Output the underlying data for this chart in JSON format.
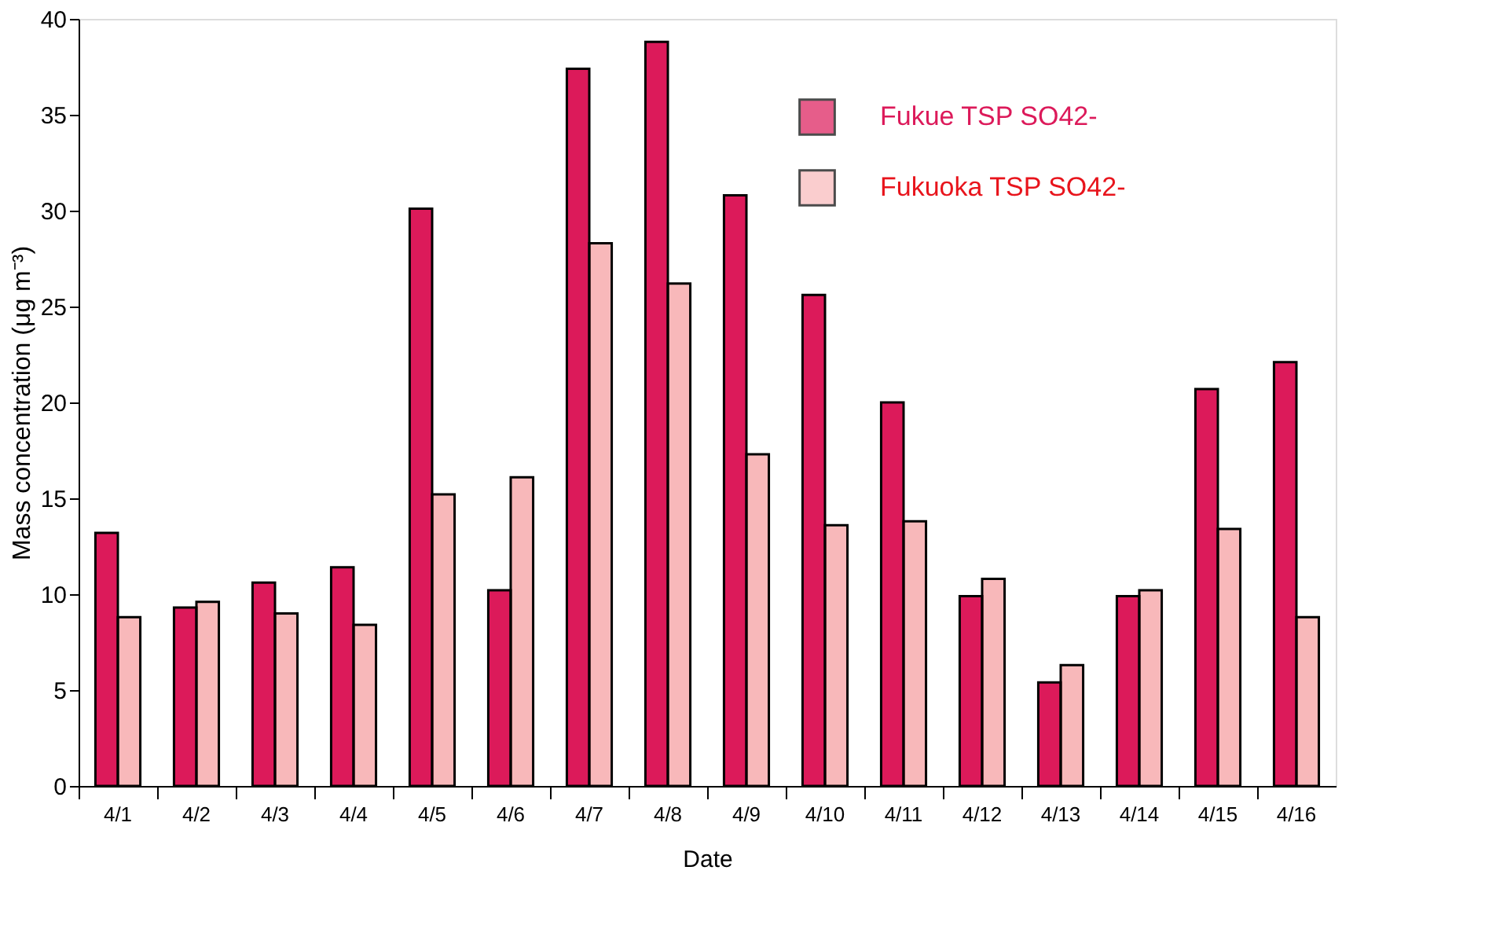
{
  "chart_data": {
    "type": "bar",
    "xlabel": "Date",
    "ylabel": "Mass concentration (μg m⁻³)",
    "categories": [
      "4/1",
      "4/2",
      "4/3",
      "4/4",
      "4/5",
      "4/6",
      "4/7",
      "4/8",
      "4/9",
      "4/10",
      "4/11",
      "4/12",
      "4/13",
      "4/14",
      "4/15",
      "4/16"
    ],
    "series": [
      {
        "name": "Fukue TSP SO42-",
        "color": "#dc1a5a",
        "values": [
          13.2,
          9.3,
          10.6,
          11.4,
          30.1,
          10.2,
          37.4,
          38.8,
          30.8,
          25.6,
          20.0,
          9.9,
          5.4,
          9.9,
          20.7,
          22.1
        ]
      },
      {
        "name": "Fukuoka TSP SO42-",
        "color": "#e8141c",
        "values": [
          8.8,
          9.6,
          9.0,
          8.4,
          15.2,
          16.1,
          28.3,
          26.2,
          17.3,
          13.6,
          13.8,
          10.8,
          6.3,
          10.2,
          13.4,
          8.8
        ]
      }
    ],
    "ylim": [
      0,
      40
    ],
    "yticks": [
      0,
      5,
      10,
      15,
      20,
      25,
      30,
      35,
      40
    ],
    "grid": false,
    "legend": "top right"
  }
}
